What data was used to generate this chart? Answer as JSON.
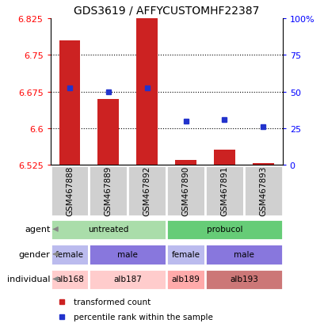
{
  "title": "GDS3619 / AFFYCUSTOMHF22387",
  "samples": [
    "GSM467888",
    "GSM467889",
    "GSM467892",
    "GSM467890",
    "GSM467891",
    "GSM467893"
  ],
  "bar_values": [
    6.78,
    6.66,
    6.825,
    6.535,
    6.555,
    6.527
  ],
  "bar_base": 6.525,
  "blue_values": [
    6.682,
    6.675,
    6.682,
    6.614,
    6.618,
    6.603
  ],
  "ylim_left": [
    6.525,
    6.825
  ],
  "yticks_left": [
    6.525,
    6.6,
    6.675,
    6.75,
    6.825
  ],
  "yticks_right": [
    0,
    25,
    50,
    75,
    100
  ],
  "yticks_right_vals": [
    6.525,
    6.6,
    6.675,
    6.75,
    6.825
  ],
  "bar_color": "#cc2222",
  "blue_color": "#2233cc",
  "agent_row": {
    "label": "agent",
    "groups": [
      {
        "text": "untreated",
        "start": 0,
        "end": 3,
        "color": "#aaddaa"
      },
      {
        "text": "probucol",
        "start": 3,
        "end": 6,
        "color": "#66cc77"
      }
    ]
  },
  "gender_row": {
    "label": "gender",
    "groups": [
      {
        "text": "female",
        "start": 0,
        "end": 1,
        "color": "#bbbbee"
      },
      {
        "text": "male",
        "start": 1,
        "end": 3,
        "color": "#8877dd"
      },
      {
        "text": "female",
        "start": 3,
        "end": 4,
        "color": "#bbbbee"
      },
      {
        "text": "male",
        "start": 4,
        "end": 6,
        "color": "#8877dd"
      }
    ]
  },
  "individual_row": {
    "label": "individual",
    "groups": [
      {
        "text": "alb168",
        "start": 0,
        "end": 1,
        "color": "#ffcccc"
      },
      {
        "text": "alb187",
        "start": 1,
        "end": 3,
        "color": "#ffcccc"
      },
      {
        "text": "alb189",
        "start": 3,
        "end": 4,
        "color": "#ffaaaa"
      },
      {
        "text": "alb193",
        "start": 4,
        "end": 6,
        "color": "#cc7777"
      }
    ]
  },
  "legend_items": [
    {
      "label": "transformed count",
      "color": "#cc2222"
    },
    {
      "label": "percentile rank within the sample",
      "color": "#2233cc"
    }
  ],
  "fig_width": 4.1,
  "fig_height": 4.14,
  "dpi": 100
}
